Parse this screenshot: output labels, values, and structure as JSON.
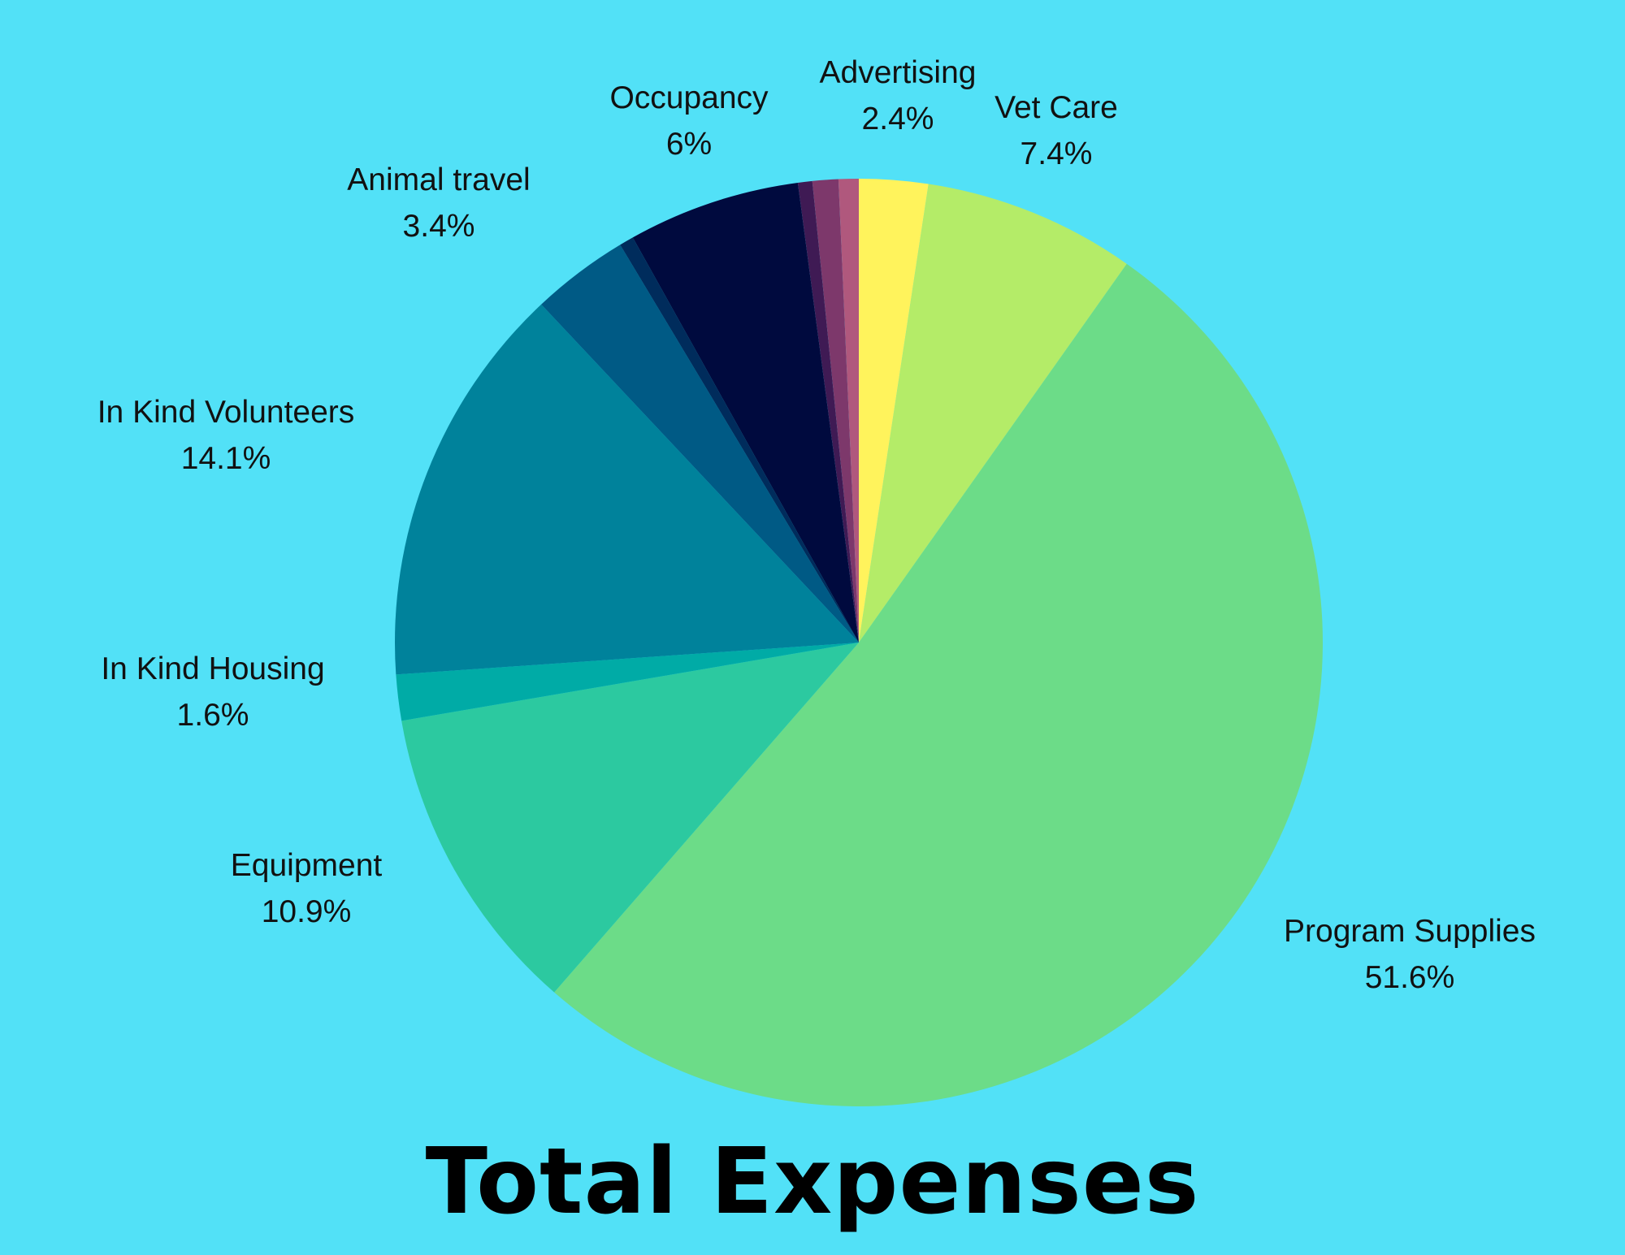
{
  "chart_data": {
    "type": "pie",
    "title": "Total Expenses",
    "slices": [
      {
        "label": "Advertising",
        "value": 2.4,
        "value_label": "2.4%",
        "color": "#fff35c"
      },
      {
        "label": "Vet Care",
        "value": 7.4,
        "value_label": "7.4%",
        "color": "#b4ec68"
      },
      {
        "label": "Program Supplies",
        "value": 51.6,
        "value_label": "51.6%",
        "color": "#6cdc88"
      },
      {
        "label": "Equipment",
        "value": 10.9,
        "value_label": "10.9%",
        "color": "#2cc9a0"
      },
      {
        "label": "In Kind Housing",
        "value": 1.6,
        "value_label": "1.6%",
        "color": "#00aba6"
      },
      {
        "label": "In Kind Volunteers",
        "value": 14.1,
        "value_label": "14.1%",
        "color": "#00829b"
      },
      {
        "label": "Animal travel",
        "value": 3.4,
        "value_label": "3.4%",
        "color": "#005a85"
      },
      {
        "label": "",
        "value": 0.5,
        "value_label": "",
        "color": "#002c5c"
      },
      {
        "label": "Occupancy",
        "value": 6,
        "value_label": "6%",
        "color": "#000a3e"
      },
      {
        "label": "",
        "value": 0.5,
        "value_label": "",
        "color": "#3f1a54"
      },
      {
        "label": "",
        "value": 0.9,
        "value_label": "",
        "color": "#7d386b"
      },
      {
        "label": "",
        "value": 0.7,
        "value_label": "",
        "color": "#b0587d"
      }
    ],
    "background": "#52e1f7"
  }
}
